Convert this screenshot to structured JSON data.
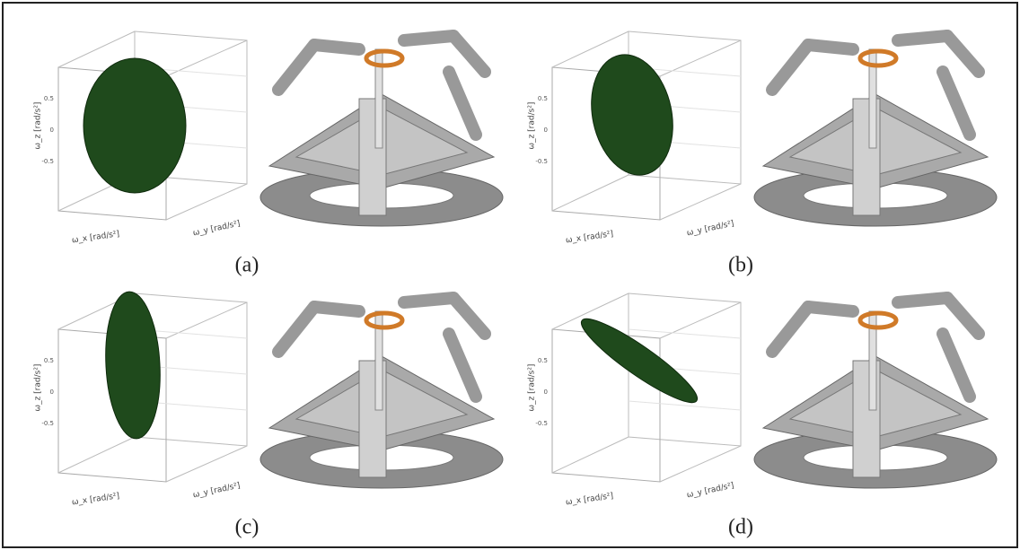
{
  "panels": [
    {
      "label": "(a)",
      "plot": {
        "x_label": "ω_x [rad/s²]",
        "y_label": "ω_y [rad/s²]",
        "z_label": "ω_z [rad/s²]",
        "z_ticks": [
          "0.5",
          "0",
          "-0.5"
        ]
      }
    },
    {
      "label": "(b)",
      "plot": {
        "x_label": "ω_x [rad/s²]",
        "y_label": "ω_y [rad/s²]",
        "z_label": "ω_z [rad/s²]",
        "z_ticks": [
          "0.5",
          "0",
          "-0.5"
        ]
      }
    },
    {
      "label": "(c)",
      "plot": {
        "x_label": "ω_x [rad/s²]",
        "y_label": "ω_y [rad/s²]",
        "z_label": "ω_z [rad/s²]",
        "z_ticks": [
          "0.5",
          "0",
          "-0.5"
        ]
      }
    },
    {
      "label": "(d)",
      "plot": {
        "x_label": "ω_x [rad/s²]",
        "y_label": "ω_y [rad/s²]",
        "z_label": "ω_z [rad/s²]",
        "z_ticks": [
          "0.5",
          "0",
          "-0.5"
        ]
      }
    }
  ]
}
